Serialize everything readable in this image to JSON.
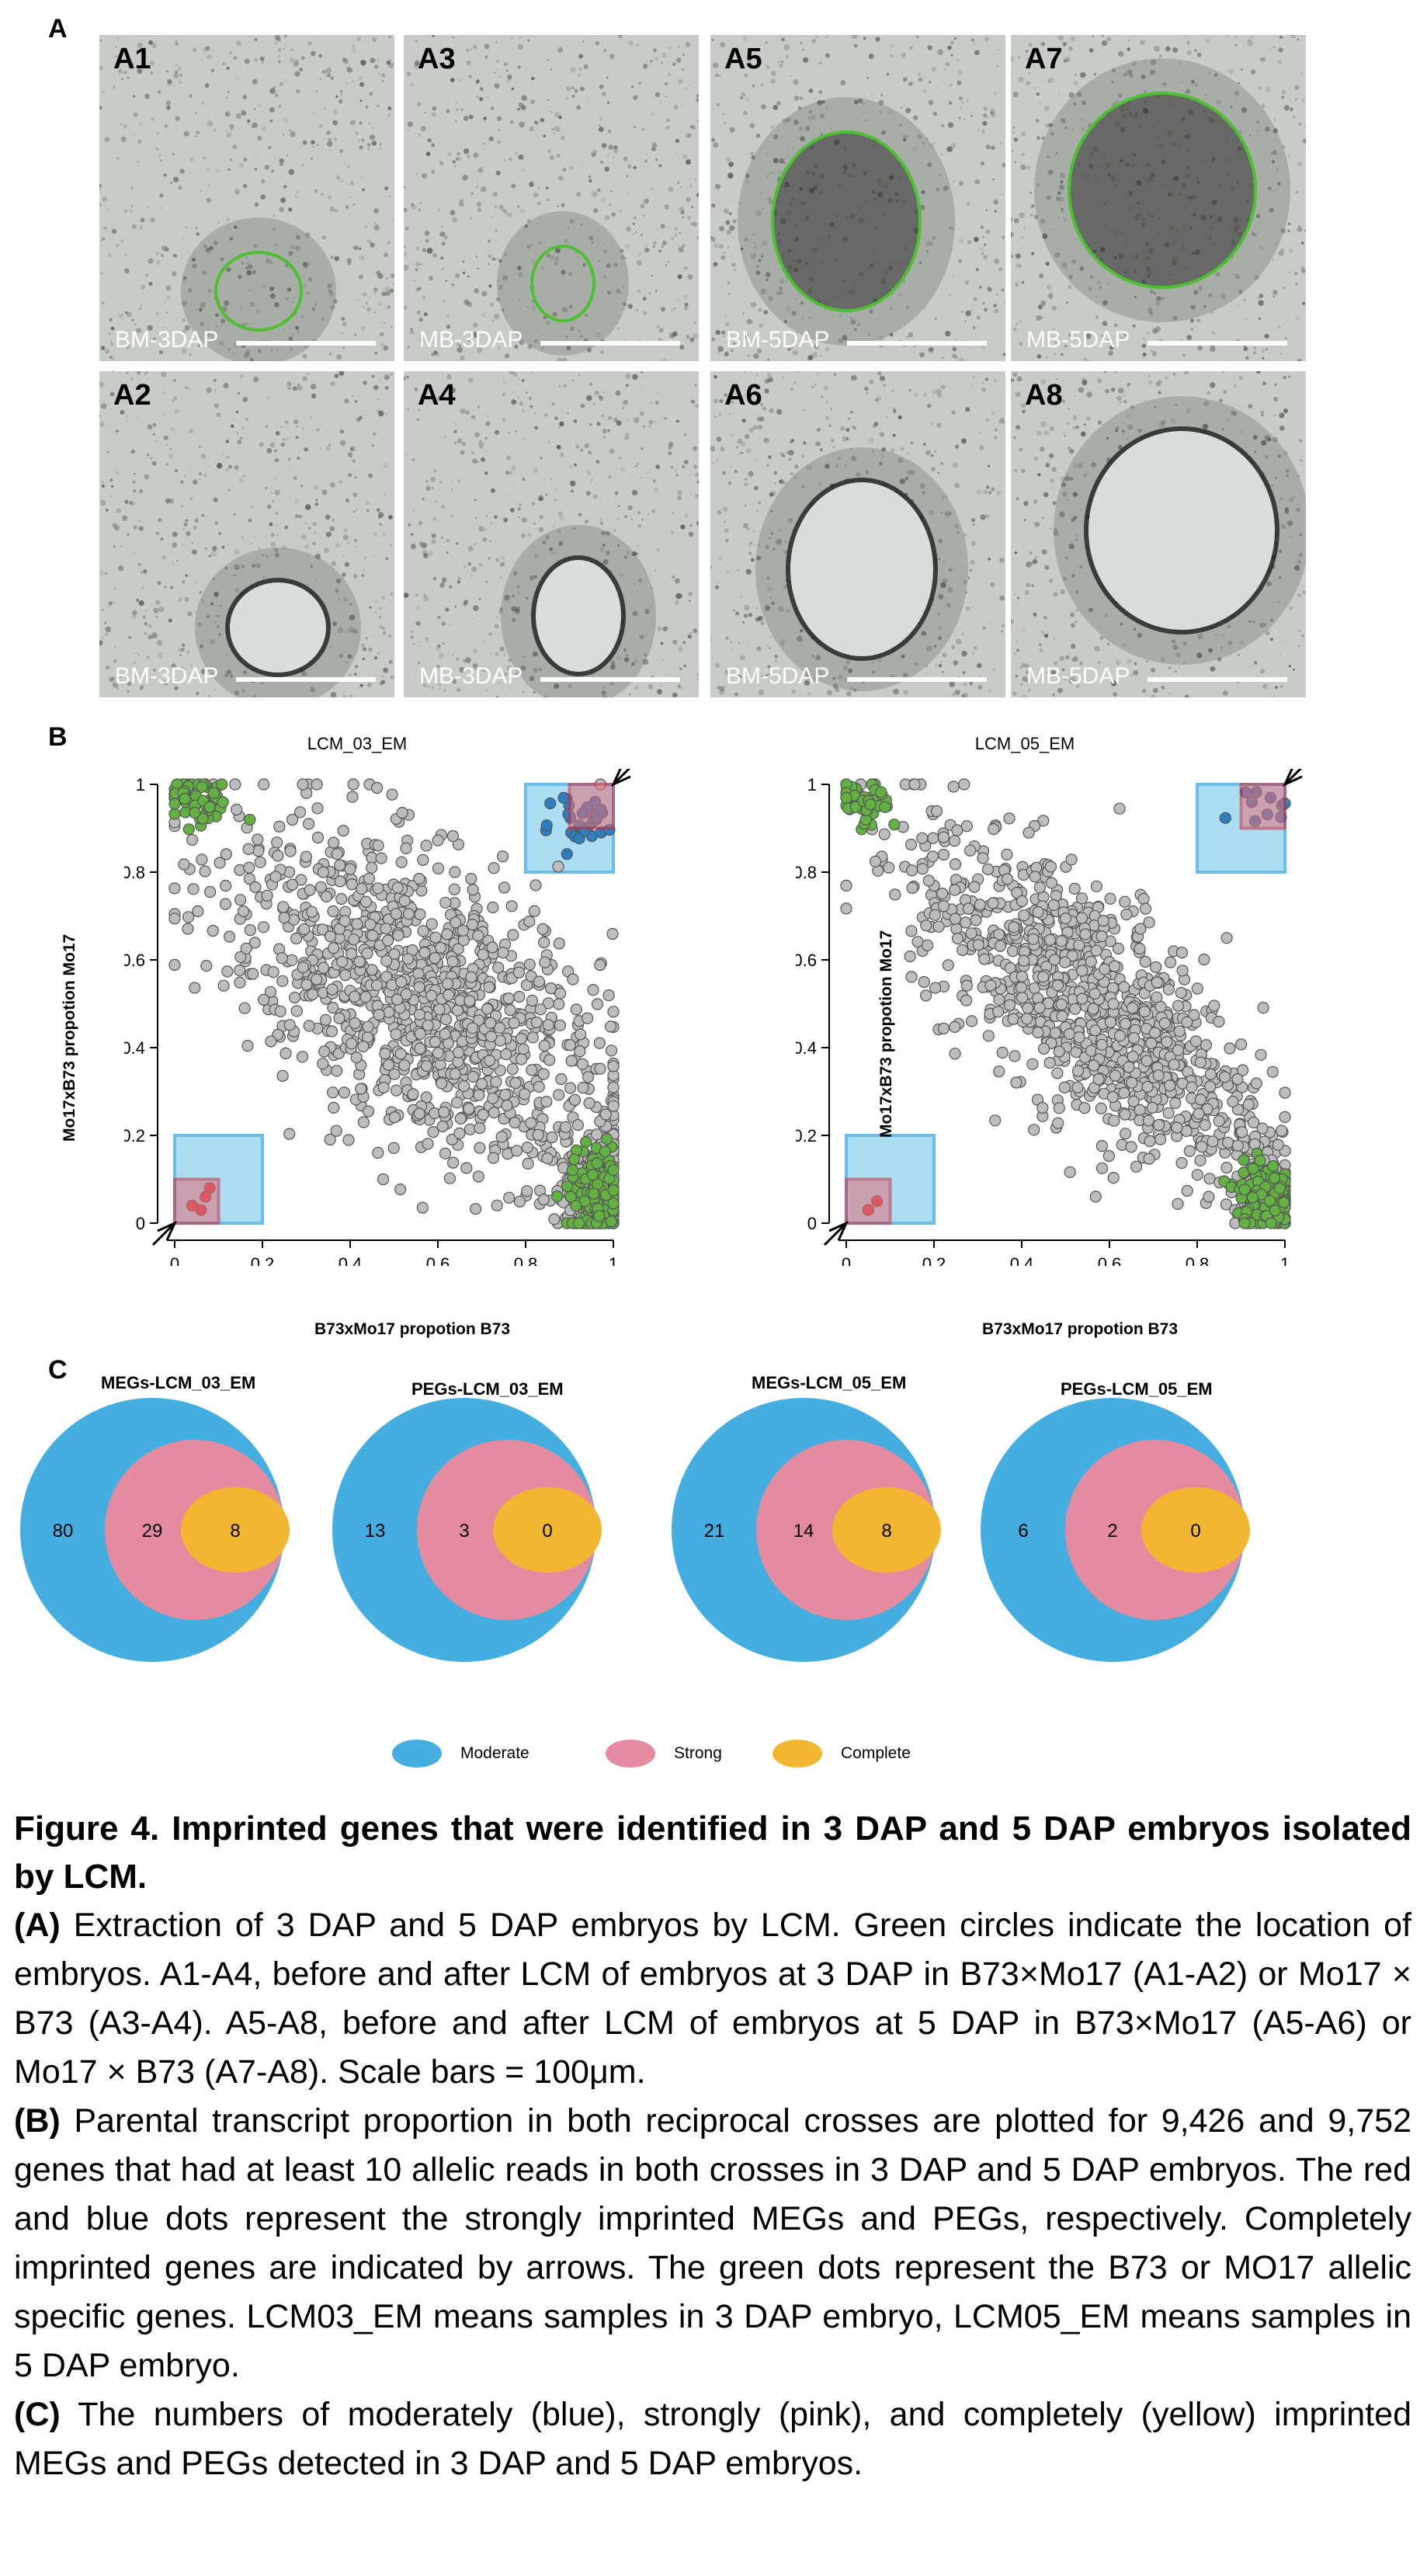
{
  "panelA": {
    "letter": "A",
    "images": [
      {
        "label": "A1",
        "sample": "BM-3DAP"
      },
      {
        "label": "A3",
        "sample": "MB-3DAP"
      },
      {
        "label": "A5",
        "sample": "BM-5DAP"
      },
      {
        "label": "A7",
        "sample": "MB-5DAP"
      },
      {
        "label": "A2",
        "sample": "BM-3DAP"
      },
      {
        "label": "A4",
        "sample": "MB-3DAP"
      },
      {
        "label": "A6",
        "sample": "BM-5DAP"
      },
      {
        "label": "A8",
        "sample": "MB-5DAP"
      }
    ]
  },
  "panelB": {
    "letter": "B",
    "colors": {
      "grey": "#bdbdbd",
      "green": "#63b043",
      "blue": "#2d80c0",
      "red": "#d63a46",
      "box_blue": "#8fd3ef",
      "box_red": "#e5717c"
    }
  },
  "chart_data": [
    {
      "type": "scatter",
      "title": "LCM_03_EM",
      "xlabel": "B73xMo17 propotion B73",
      "ylabel": "Mo17xB73 propotion Mo17",
      "xlim": [
        0,
        1
      ],
      "ylim": [
        0,
        1
      ],
      "xticks": [
        "0",
        "0.2",
        "0.4",
        "0.6",
        "0.8",
        "1"
      ],
      "yticks": [
        "0",
        "0.2",
        "0.4",
        "0.6",
        "0.8",
        "1"
      ],
      "grid": false,
      "regions": [
        {
          "kind": "moderate",
          "x": [
            0.8,
            1.0
          ],
          "y": [
            0.8,
            1.0
          ]
        },
        {
          "kind": "strong",
          "x": [
            0.9,
            1.0
          ],
          "y": [
            0.9,
            1.0
          ]
        },
        {
          "kind": "moderate",
          "x": [
            0.0,
            0.2
          ],
          "y": [
            0.0,
            0.2
          ]
        },
        {
          "kind": "strong",
          "x": [
            0.0,
            0.1
          ],
          "y": [
            0.0,
            0.1
          ]
        }
      ],
      "arrows": [
        {
          "at": [
            1.0,
            1.0
          ]
        },
        {
          "at": [
            0.0,
            0.0
          ]
        }
      ],
      "series": [
        {
          "color": "grey",
          "kind": "cloud",
          "n": 1100,
          "center": [
            0.55,
            0.52
          ],
          "spread": [
            0.22,
            0.2
          ],
          "corr": -0.55
        },
        {
          "color": "grey",
          "kind": "cluster",
          "n": 140,
          "center": [
            0.95,
            0.1
          ],
          "spread": [
            0.04,
            0.07
          ],
          "corr": 0
        },
        {
          "color": "green",
          "kind": "cluster",
          "n": 160,
          "center": [
            0.96,
            0.05
          ],
          "spread": [
            0.03,
            0.06
          ],
          "corr": 0
        },
        {
          "color": "green",
          "kind": "cluster",
          "n": 55,
          "center": [
            0.05,
            0.96
          ],
          "spread": [
            0.04,
            0.03
          ],
          "corr": 0
        },
        {
          "color": "blue",
          "kind": "cluster",
          "n": 28,
          "center": [
            0.93,
            0.92
          ],
          "spread": [
            0.04,
            0.04
          ],
          "corr": 0
        },
        {
          "color": "red",
          "kind": "points",
          "points": [
            [
              0.06,
              0.03
            ],
            [
              0.07,
              0.06
            ],
            [
              0.04,
              0.04
            ],
            [
              0.08,
              0.08
            ]
          ]
        }
      ]
    },
    {
      "type": "scatter",
      "title": "LCM_05_EM",
      "xlabel": "B73xMo17 propotion B73",
      "ylabel": "Mo17xB73 propotion Mo17",
      "xlim": [
        0,
        1
      ],
      "ylim": [
        0,
        1
      ],
      "xticks": [
        "0",
        "0.2",
        "0.4",
        "0.6",
        "0.8",
        "1"
      ],
      "yticks": [
        "0",
        "0.2",
        "0.4",
        "0.6",
        "0.8",
        "1"
      ],
      "grid": false,
      "regions": [
        {
          "kind": "moderate",
          "x": [
            0.8,
            1.0
          ],
          "y": [
            0.8,
            1.0
          ]
        },
        {
          "kind": "strong",
          "x": [
            0.9,
            1.0
          ],
          "y": [
            0.9,
            1.0
          ]
        },
        {
          "kind": "moderate",
          "x": [
            0.0,
            0.2
          ],
          "y": [
            0.0,
            0.2
          ]
        },
        {
          "kind": "strong",
          "x": [
            0.0,
            0.1
          ],
          "y": [
            0.0,
            0.1
          ]
        }
      ],
      "arrows": [
        {
          "at": [
            1.0,
            1.0
          ]
        },
        {
          "at": [
            0.0,
            0.0
          ]
        }
      ],
      "series": [
        {
          "color": "grey",
          "kind": "cloud",
          "n": 1000,
          "center": [
            0.55,
            0.5
          ],
          "spread": [
            0.2,
            0.2
          ],
          "corr": -0.72
        },
        {
          "color": "grey",
          "kind": "cluster",
          "n": 90,
          "center": [
            0.95,
            0.1
          ],
          "spread": [
            0.04,
            0.06
          ],
          "corr": 0
        },
        {
          "color": "green",
          "kind": "cluster",
          "n": 150,
          "center": [
            0.95,
            0.06
          ],
          "spread": [
            0.03,
            0.04
          ],
          "corr": 0
        },
        {
          "color": "green",
          "kind": "cluster",
          "n": 45,
          "center": [
            0.04,
            0.95
          ],
          "spread": [
            0.03,
            0.03
          ],
          "corr": 0
        },
        {
          "color": "blue",
          "kind": "cluster",
          "n": 10,
          "center": [
            0.95,
            0.95
          ],
          "spread": [
            0.03,
            0.03
          ],
          "corr": 0
        },
        {
          "color": "red",
          "kind": "points",
          "points": [
            [
              0.07,
              0.05
            ],
            [
              0.05,
              0.03
            ]
          ]
        }
      ]
    }
  ],
  "panelC": {
    "letter": "C",
    "venns": [
      {
        "title": "MEGs-LCM_03_EM",
        "moderate": "80",
        "strong": "29",
        "complete": "8"
      },
      {
        "title": "PEGs-LCM_03_EM",
        "moderate": "13",
        "strong": "3",
        "complete": "0"
      },
      {
        "title": "MEGs-LCM_05_EM",
        "moderate": "21",
        "strong": "14",
        "complete": "8"
      },
      {
        "title": "PEGs-LCM_05_EM",
        "moderate": "6",
        "strong": "2",
        "complete": "0"
      }
    ],
    "legend": [
      {
        "label": "Moderate",
        "color": "#44aee0"
      },
      {
        "label": "Strong",
        "color": "#e58ba0"
      },
      {
        "label": "Complete",
        "color": "#f2b731"
      }
    ]
  },
  "caption": {
    "title": "Figure 4. Imprinted genes that were identified in 3 DAP and 5 DAP embryos isolated by LCM.",
    "paragraphs": [
      {
        "tag": "(A)",
        "text": " Extraction of 3 DAP and 5 DAP embryos by LCM. Green circles indicate the location of embryos. A1-A4, before and after LCM of embryos at 3 DAP in B73×Mo17 (A1-A2) or Mo17 × B73 (A3-A4). A5-A8, before and after LCM of embryos at 5 DAP in B73×Mo17 (A5-A6) or Mo17 × B73 (A7-A8). Scale bars = 100μm."
      },
      {
        "tag": "(B)",
        "text": " Parental transcript proportion in both reciprocal crosses are plotted for 9,426 and 9,752 genes that had at least 10 allelic reads in both crosses in 3 DAP and 5 DAP embryos. The red and blue dots represent the strongly imprinted MEGs and PEGs, respectively. Completely imprinted genes are indicated by arrows. The green dots represent the B73 or MO17 allelic specific genes. LCM03_EM means samples in 3 DAP embryo, LCM05_EM means samples in 5 DAP embryo."
      },
      {
        "tag": "(C)",
        "text": " The numbers of moderately (blue), strongly (pink), and completely (yellow) imprinted MEGs and PEGs detected in 3 DAP and 5 DAP embryos."
      }
    ]
  }
}
